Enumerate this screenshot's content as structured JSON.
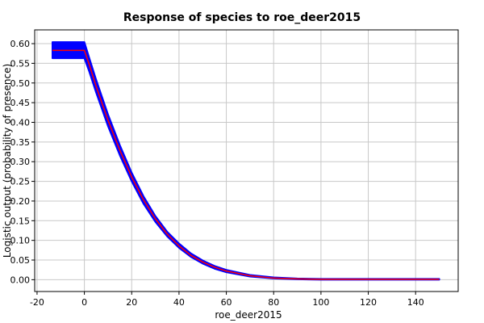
{
  "chart_data": {
    "type": "line",
    "title": "Response of species to roe_deer2015",
    "xlabel": "roe_deer2015",
    "ylabel": "Logistic output (probability of presence)",
    "xlim": [
      -21,
      158
    ],
    "ylim": [
      -0.03,
      0.635
    ],
    "x_ticks": [
      -20,
      0,
      20,
      40,
      60,
      80,
      100,
      120,
      140
    ],
    "x_tick_labels": [
      "-20",
      "0",
      "20",
      "40",
      "60",
      "80",
      "100",
      "120",
      "140"
    ],
    "y_ticks": [
      0.0,
      0.05,
      0.1,
      0.15,
      0.2,
      0.25,
      0.3,
      0.35,
      0.4,
      0.45,
      0.5,
      0.55,
      0.6
    ],
    "y_tick_labels": [
      "0.00",
      "0.05",
      "0.10",
      "0.15",
      "0.20",
      "0.25",
      "0.30",
      "0.35",
      "0.40",
      "0.45",
      "0.50",
      "0.55",
      "0.60"
    ],
    "grid": true,
    "series": [
      {
        "role": "band",
        "color": "#0000ff",
        "x": [
          -13.5,
          0,
          2,
          5,
          10,
          15,
          20,
          25,
          30,
          35,
          40,
          45,
          50,
          55,
          60,
          70,
          80,
          90,
          100,
          110,
          120,
          130,
          140,
          150
        ],
        "upper": [
          0.604,
          0.604,
          0.565,
          0.508,
          0.42,
          0.342,
          0.272,
          0.212,
          0.162,
          0.122,
          0.092,
          0.067,
          0.049,
          0.035,
          0.025,
          0.012,
          0.006,
          0.003,
          0.002,
          0.002,
          0.002,
          0.002,
          0.002,
          0.002
        ],
        "lower": [
          0.563,
          0.563,
          0.53,
          0.475,
          0.39,
          0.316,
          0.25,
          0.193,
          0.147,
          0.11,
          0.081,
          0.058,
          0.041,
          0.028,
          0.019,
          0.008,
          0.003,
          0.001,
          0.0,
          0.0,
          0.0,
          0.0,
          0.0,
          0.0
        ]
      },
      {
        "role": "mean",
        "color": "#ff0000",
        "x": [
          -13.5,
          0,
          2,
          5,
          10,
          15,
          20,
          25,
          30,
          35,
          40,
          45,
          50,
          55,
          60,
          70,
          80,
          90,
          100,
          110,
          120,
          130,
          140,
          150
        ],
        "y": [
          0.583,
          0.583,
          0.548,
          0.491,
          0.405,
          0.329,
          0.261,
          0.203,
          0.155,
          0.116,
          0.086,
          0.062,
          0.045,
          0.032,
          0.022,
          0.01,
          0.004,
          0.002,
          0.001,
          0.001,
          0.001,
          0.001,
          0.001,
          0.001
        ]
      }
    ]
  }
}
